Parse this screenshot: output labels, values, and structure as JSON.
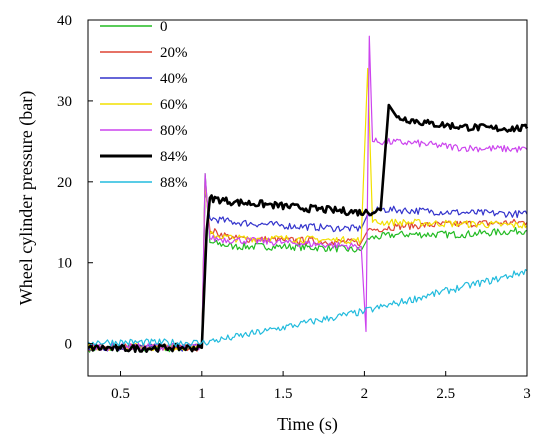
{
  "chart_data": {
    "type": "line",
    "title": "",
    "xlabel": "Time (s)",
    "ylabel": "Wheel cylinder pressure (bar)",
    "xlim": [
      0.3,
      3.0
    ],
    "ylim": [
      -4,
      40
    ],
    "xticks": [
      0.5,
      1,
      1.5,
      2,
      2.5,
      3
    ],
    "xtick_labels": [
      "0.5",
      "1",
      "1.5",
      "2",
      "2.5",
      "3"
    ],
    "yticks": [
      0,
      10,
      20,
      30,
      40
    ],
    "ytick_labels": [
      "0",
      "10",
      "20",
      "30",
      "40"
    ],
    "grid": false,
    "legend": "top-left",
    "series": [
      {
        "name": "0",
        "color": "#22bb22",
        "points": [
          [
            0.3,
            -0.6
          ],
          [
            1.0,
            -0.6
          ],
          [
            1.02,
            21
          ],
          [
            1.05,
            12.5
          ],
          [
            1.2,
            12
          ],
          [
            1.5,
            12
          ],
          [
            1.8,
            11.8
          ],
          [
            1.98,
            11.5
          ],
          [
            2.02,
            13
          ],
          [
            2.2,
            13.5
          ],
          [
            2.6,
            13.5
          ],
          [
            3.0,
            14
          ]
        ]
      },
      {
        "name": "20%",
        "color": "#dd4433",
        "points": [
          [
            0.3,
            -0.5
          ],
          [
            1.0,
            -0.5
          ],
          [
            1.02,
            20
          ],
          [
            1.05,
            14
          ],
          [
            1.2,
            13
          ],
          [
            1.5,
            12.8
          ],
          [
            1.8,
            12.6
          ],
          [
            1.98,
            12.5
          ],
          [
            2.02,
            14
          ],
          [
            2.2,
            14.5
          ],
          [
            2.6,
            14.8
          ],
          [
            3.0,
            15
          ]
        ]
      },
      {
        "name": "40%",
        "color": "#3333cc",
        "points": [
          [
            0.3,
            -0.5
          ],
          [
            1.0,
            -0.5
          ],
          [
            1.02,
            19
          ],
          [
            1.05,
            15.5
          ],
          [
            1.2,
            15
          ],
          [
            1.5,
            14.6
          ],
          [
            1.8,
            14.3
          ],
          [
            1.98,
            14.2
          ],
          [
            2.02,
            16
          ],
          [
            2.1,
            16.6
          ],
          [
            2.6,
            16.2
          ],
          [
            3.0,
            16
          ]
        ]
      },
      {
        "name": "60%",
        "color": "#f2e000",
        "points": [
          [
            0.3,
            -0.4
          ],
          [
            1.0,
            -0.4
          ],
          [
            1.02,
            20
          ],
          [
            1.05,
            13.5
          ],
          [
            1.2,
            13
          ],
          [
            1.5,
            13
          ],
          [
            1.8,
            12.8
          ],
          [
            1.98,
            12.8
          ],
          [
            2.02,
            34
          ],
          [
            2.05,
            15
          ],
          [
            2.2,
            15
          ],
          [
            2.6,
            14.8
          ],
          [
            3.0,
            14.6
          ]
        ]
      },
      {
        "name": "80%",
        "color": "#cc44ee",
        "points": [
          [
            0.3,
            -0.4
          ],
          [
            1.0,
            -0.4
          ],
          [
            1.02,
            21
          ],
          [
            1.05,
            13
          ],
          [
            1.2,
            12.8
          ],
          [
            1.5,
            12.5
          ],
          [
            1.8,
            12.2
          ],
          [
            1.98,
            12
          ],
          [
            2.01,
            1.5
          ],
          [
            2.03,
            38
          ],
          [
            2.05,
            25
          ],
          [
            2.3,
            24.8
          ],
          [
            2.6,
            24.2
          ],
          [
            3.0,
            24
          ]
        ]
      },
      {
        "name": "84%",
        "color": "#000000",
        "points": [
          [
            0.3,
            -0.5
          ],
          [
            0.5,
            -0.6
          ],
          [
            0.8,
            -0.5
          ],
          [
            1.0,
            -0.5
          ],
          [
            1.03,
            14
          ],
          [
            1.05,
            18
          ],
          [
            1.2,
            17.5
          ],
          [
            1.4,
            17.2
          ],
          [
            1.6,
            16.8
          ],
          [
            1.8,
            16.5
          ],
          [
            2.0,
            16.2
          ],
          [
            2.1,
            16.5
          ],
          [
            2.15,
            29.5
          ],
          [
            2.2,
            28
          ],
          [
            2.4,
            27.2
          ],
          [
            2.6,
            26.8
          ],
          [
            2.8,
            26.6
          ],
          [
            3.0,
            26.6
          ]
        ]
      },
      {
        "name": "88%",
        "color": "#22bbdd",
        "points": [
          [
            0.3,
            0.2
          ],
          [
            1.0,
            0.1
          ],
          [
            1.2,
            0.8
          ],
          [
            1.4,
            1.6
          ],
          [
            1.6,
            2.4
          ],
          [
            1.8,
            3.2
          ],
          [
            2.0,
            4.0
          ],
          [
            2.2,
            5.0
          ],
          [
            2.4,
            6.0
          ],
          [
            2.6,
            7.0
          ],
          [
            2.8,
            7.9
          ],
          [
            3.0,
            9.0
          ]
        ]
      }
    ]
  }
}
